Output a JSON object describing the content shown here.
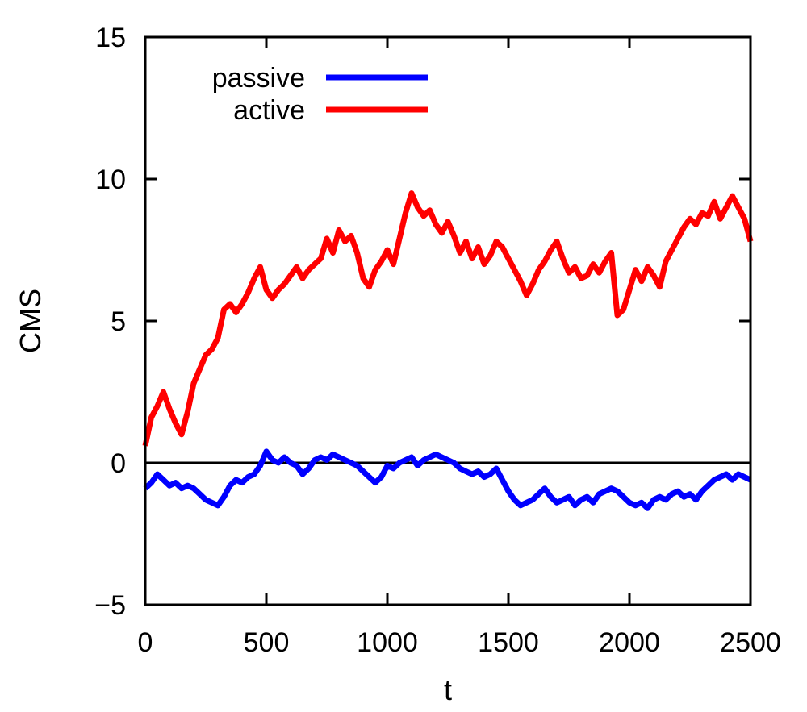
{
  "chart_data": {
    "type": "line",
    "title": "",
    "xlabel": "t",
    "ylabel": "CMS",
    "xlim": [
      0,
      2500
    ],
    "ylim": [
      -5,
      15
    ],
    "x_ticks": [
      0,
      500,
      1000,
      1500,
      2000,
      2500
    ],
    "y_ticks": [
      -5,
      0,
      5,
      10,
      15
    ],
    "x_tick_labels": [
      "0",
      "500",
      "1000",
      "1500",
      "2000",
      "2500"
    ],
    "y_tick_labels": [
      "−5",
      "0",
      "5",
      "10",
      "15"
    ],
    "grid": false,
    "legend_position": "top-left",
    "reference_line_y": 0,
    "series": [
      {
        "name": "passive",
        "color": "#0000ff",
        "x": [
          0,
          25,
          50,
          75,
          100,
          125,
          150,
          175,
          200,
          225,
          250,
          275,
          300,
          325,
          350,
          375,
          400,
          425,
          450,
          475,
          500,
          525,
          550,
          575,
          600,
          625,
          650,
          675,
          700,
          725,
          750,
          775,
          800,
          825,
          850,
          875,
          900,
          925,
          950,
          975,
          1000,
          1025,
          1050,
          1075,
          1100,
          1125,
          1150,
          1175,
          1200,
          1225,
          1250,
          1275,
          1300,
          1325,
          1350,
          1375,
          1400,
          1425,
          1450,
          1475,
          1500,
          1525,
          1550,
          1575,
          1600,
          1625,
          1650,
          1675,
          1700,
          1725,
          1750,
          1775,
          1800,
          1825,
          1850,
          1875,
          1900,
          1925,
          1950,
          1975,
          2000,
          2025,
          2050,
          2075,
          2100,
          2125,
          2150,
          2175,
          2200,
          2225,
          2250,
          2275,
          2300,
          2325,
          2350,
          2375,
          2400,
          2425,
          2450,
          2475,
          2500
        ],
        "values": [
          -0.9,
          -0.7,
          -0.4,
          -0.6,
          -0.8,
          -0.7,
          -0.9,
          -0.8,
          -0.9,
          -1.1,
          -1.3,
          -1.4,
          -1.5,
          -1.2,
          -0.8,
          -0.6,
          -0.7,
          -0.5,
          -0.4,
          -0.1,
          0.4,
          0.1,
          0.0,
          0.2,
          0.0,
          -0.1,
          -0.4,
          -0.2,
          0.1,
          0.2,
          0.1,
          0.3,
          0.2,
          0.1,
          0.0,
          -0.1,
          -0.3,
          -0.5,
          -0.7,
          -0.5,
          -0.1,
          -0.2,
          0.0,
          0.1,
          0.2,
          -0.1,
          0.1,
          0.2,
          0.3,
          0.2,
          0.1,
          0.0,
          -0.2,
          -0.3,
          -0.4,
          -0.3,
          -0.5,
          -0.4,
          -0.2,
          -0.6,
          -1.0,
          -1.3,
          -1.5,
          -1.4,
          -1.3,
          -1.1,
          -0.9,
          -1.2,
          -1.4,
          -1.3,
          -1.2,
          -1.5,
          -1.3,
          -1.2,
          -1.4,
          -1.1,
          -1.0,
          -0.9,
          -1.0,
          -1.2,
          -1.4,
          -1.5,
          -1.4,
          -1.6,
          -1.3,
          -1.2,
          -1.3,
          -1.1,
          -1.0,
          -1.2,
          -1.1,
          -1.3,
          -1.0,
          -0.8,
          -0.6,
          -0.5,
          -0.4,
          -0.6,
          -0.4,
          -0.5,
          -0.6
        ]
      },
      {
        "name": "active",
        "color": "#ff0000",
        "x": [
          0,
          25,
          50,
          75,
          100,
          125,
          150,
          175,
          200,
          225,
          250,
          275,
          300,
          325,
          350,
          375,
          400,
          425,
          450,
          475,
          500,
          525,
          550,
          575,
          600,
          625,
          650,
          675,
          700,
          725,
          750,
          775,
          800,
          825,
          850,
          875,
          900,
          925,
          950,
          975,
          1000,
          1025,
          1050,
          1075,
          1100,
          1125,
          1150,
          1175,
          1200,
          1225,
          1250,
          1275,
          1300,
          1325,
          1350,
          1375,
          1400,
          1425,
          1450,
          1475,
          1500,
          1525,
          1550,
          1575,
          1600,
          1625,
          1650,
          1675,
          1700,
          1725,
          1750,
          1775,
          1800,
          1825,
          1850,
          1875,
          1900,
          1925,
          1950,
          1975,
          2000,
          2025,
          2050,
          2075,
          2100,
          2125,
          2150,
          2175,
          2200,
          2225,
          2250,
          2275,
          2300,
          2325,
          2350,
          2375,
          2400,
          2425,
          2450,
          2475,
          2500
        ],
        "values": [
          0.6,
          1.6,
          2.0,
          2.5,
          1.9,
          1.4,
          1.0,
          1.8,
          2.8,
          3.3,
          3.8,
          4.0,
          4.4,
          5.4,
          5.6,
          5.3,
          5.6,
          6.0,
          6.5,
          6.9,
          6.1,
          5.8,
          6.1,
          6.3,
          6.6,
          6.9,
          6.5,
          6.8,
          7.0,
          7.2,
          7.9,
          7.4,
          8.2,
          7.8,
          8.0,
          7.4,
          6.5,
          6.2,
          6.8,
          7.1,
          7.5,
          7.0,
          7.9,
          8.8,
          9.5,
          9.0,
          8.7,
          8.9,
          8.4,
          8.1,
          8.5,
          8.0,
          7.4,
          7.8,
          7.2,
          7.6,
          7.0,
          7.3,
          7.8,
          7.6,
          7.2,
          6.8,
          6.4,
          5.9,
          6.3,
          6.8,
          7.1,
          7.5,
          7.8,
          7.2,
          6.7,
          6.9,
          6.5,
          6.6,
          7.0,
          6.7,
          7.1,
          7.4,
          5.2,
          5.4,
          6.1,
          6.8,
          6.4,
          6.9,
          6.6,
          6.2,
          7.1,
          7.5,
          7.9,
          8.3,
          8.6,
          8.4,
          8.8,
          8.7,
          9.2,
          8.6,
          9.0,
          9.4,
          9.0,
          8.6,
          7.8
        ]
      }
    ]
  }
}
